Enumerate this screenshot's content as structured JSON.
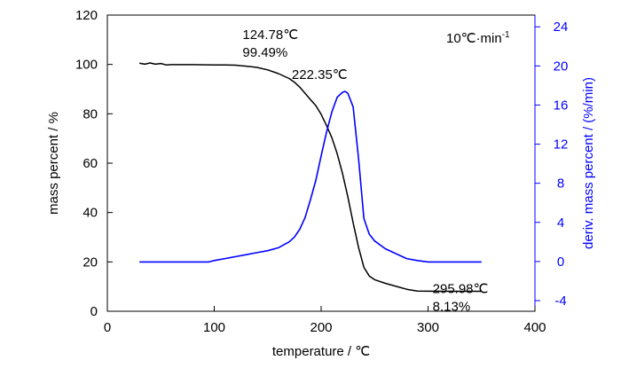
{
  "chart_data": {
    "type": "line",
    "xlabel": "temperature / ℃",
    "ylabel_left": "mass percent / %",
    "ylabel_right": "deriv. mass percent / (%/min)",
    "xlim": [
      0,
      400
    ],
    "ylim_left": [
      0,
      120
    ],
    "ylim_right": [
      -5.09,
      25.2
    ],
    "x_ticks": [
      0,
      100,
      200,
      300,
      400
    ],
    "y_ticks_left": [
      0,
      20,
      40,
      60,
      80,
      100,
      120
    ],
    "y_ticks_right": [
      -4,
      0,
      4,
      8,
      12,
      16,
      20,
      24
    ],
    "grid": false,
    "colors": {
      "mass": "#000000",
      "deriv": "#0000ff"
    },
    "series": [
      {
        "axis": "left",
        "x": [
          30,
          35,
          40,
          45,
          50,
          55,
          60,
          80,
          100,
          110,
          120,
          124.78,
          130,
          140,
          150,
          160,
          170,
          175,
          180,
          185,
          190,
          195,
          200,
          205,
          210,
          215,
          220,
          225,
          230,
          235,
          240,
          245,
          250,
          260,
          270,
          280,
          290,
          300,
          320,
          340,
          350
        ],
        "values": [
          100.5,
          100.1,
          100.6,
          100.1,
          100.4,
          99.8,
          99.9,
          99.9,
          99.8,
          99.8,
          99.7,
          99.49,
          99.3,
          98.8,
          97.8,
          96.3,
          94.3,
          92.8,
          90.8,
          88.3,
          85.8,
          83.3,
          79.8,
          75.3,
          70.3,
          63.8,
          55.8,
          46.3,
          35.8,
          25.8,
          17.8,
          14.3,
          12.8,
          11.3,
          10.1,
          8.9,
          8.2,
          8.13,
          8.1,
          8.1,
          8.1
        ]
      },
      {
        "axis": "right",
        "x": [
          30,
          95,
          100,
          110,
          120,
          130,
          140,
          150,
          160,
          165,
          170,
          175,
          180,
          185,
          190,
          195,
          200,
          205,
          210,
          215,
          220,
          222.35,
          225,
          230,
          235,
          240,
          245,
          250,
          260,
          270,
          280,
          290,
          300,
          320,
          350
        ],
        "values": [
          -0.05,
          -0.05,
          0.1,
          0.3,
          0.5,
          0.7,
          0.9,
          1.1,
          1.4,
          1.7,
          2.0,
          2.5,
          3.3,
          4.5,
          6.3,
          8.3,
          10.8,
          13.2,
          15.3,
          16.8,
          17.3,
          17.4,
          17.2,
          15.8,
          10.5,
          4.4,
          2.8,
          2.1,
          1.3,
          0.8,
          0.3,
          0.1,
          -0.05,
          -0.05,
          -0.05
        ]
      }
    ],
    "annotations": [
      {
        "lines": [
          "124.78℃",
          "99.49%"
        ],
        "x": 124.78,
        "y": 99.49,
        "axis": "left",
        "anchor": "above-right"
      },
      {
        "lines": [
          "222.35℃"
        ],
        "x": 222.35,
        "y": 17.4,
        "axis": "right",
        "anchor": "above-left"
      },
      {
        "lines": [
          "295.98℃",
          "8.13%"
        ],
        "x": 295.98,
        "y": 8.13,
        "axis": "left",
        "anchor": "right"
      }
    ],
    "rate_label": "10℃·min",
    "rate_label_superscript": "-1"
  }
}
